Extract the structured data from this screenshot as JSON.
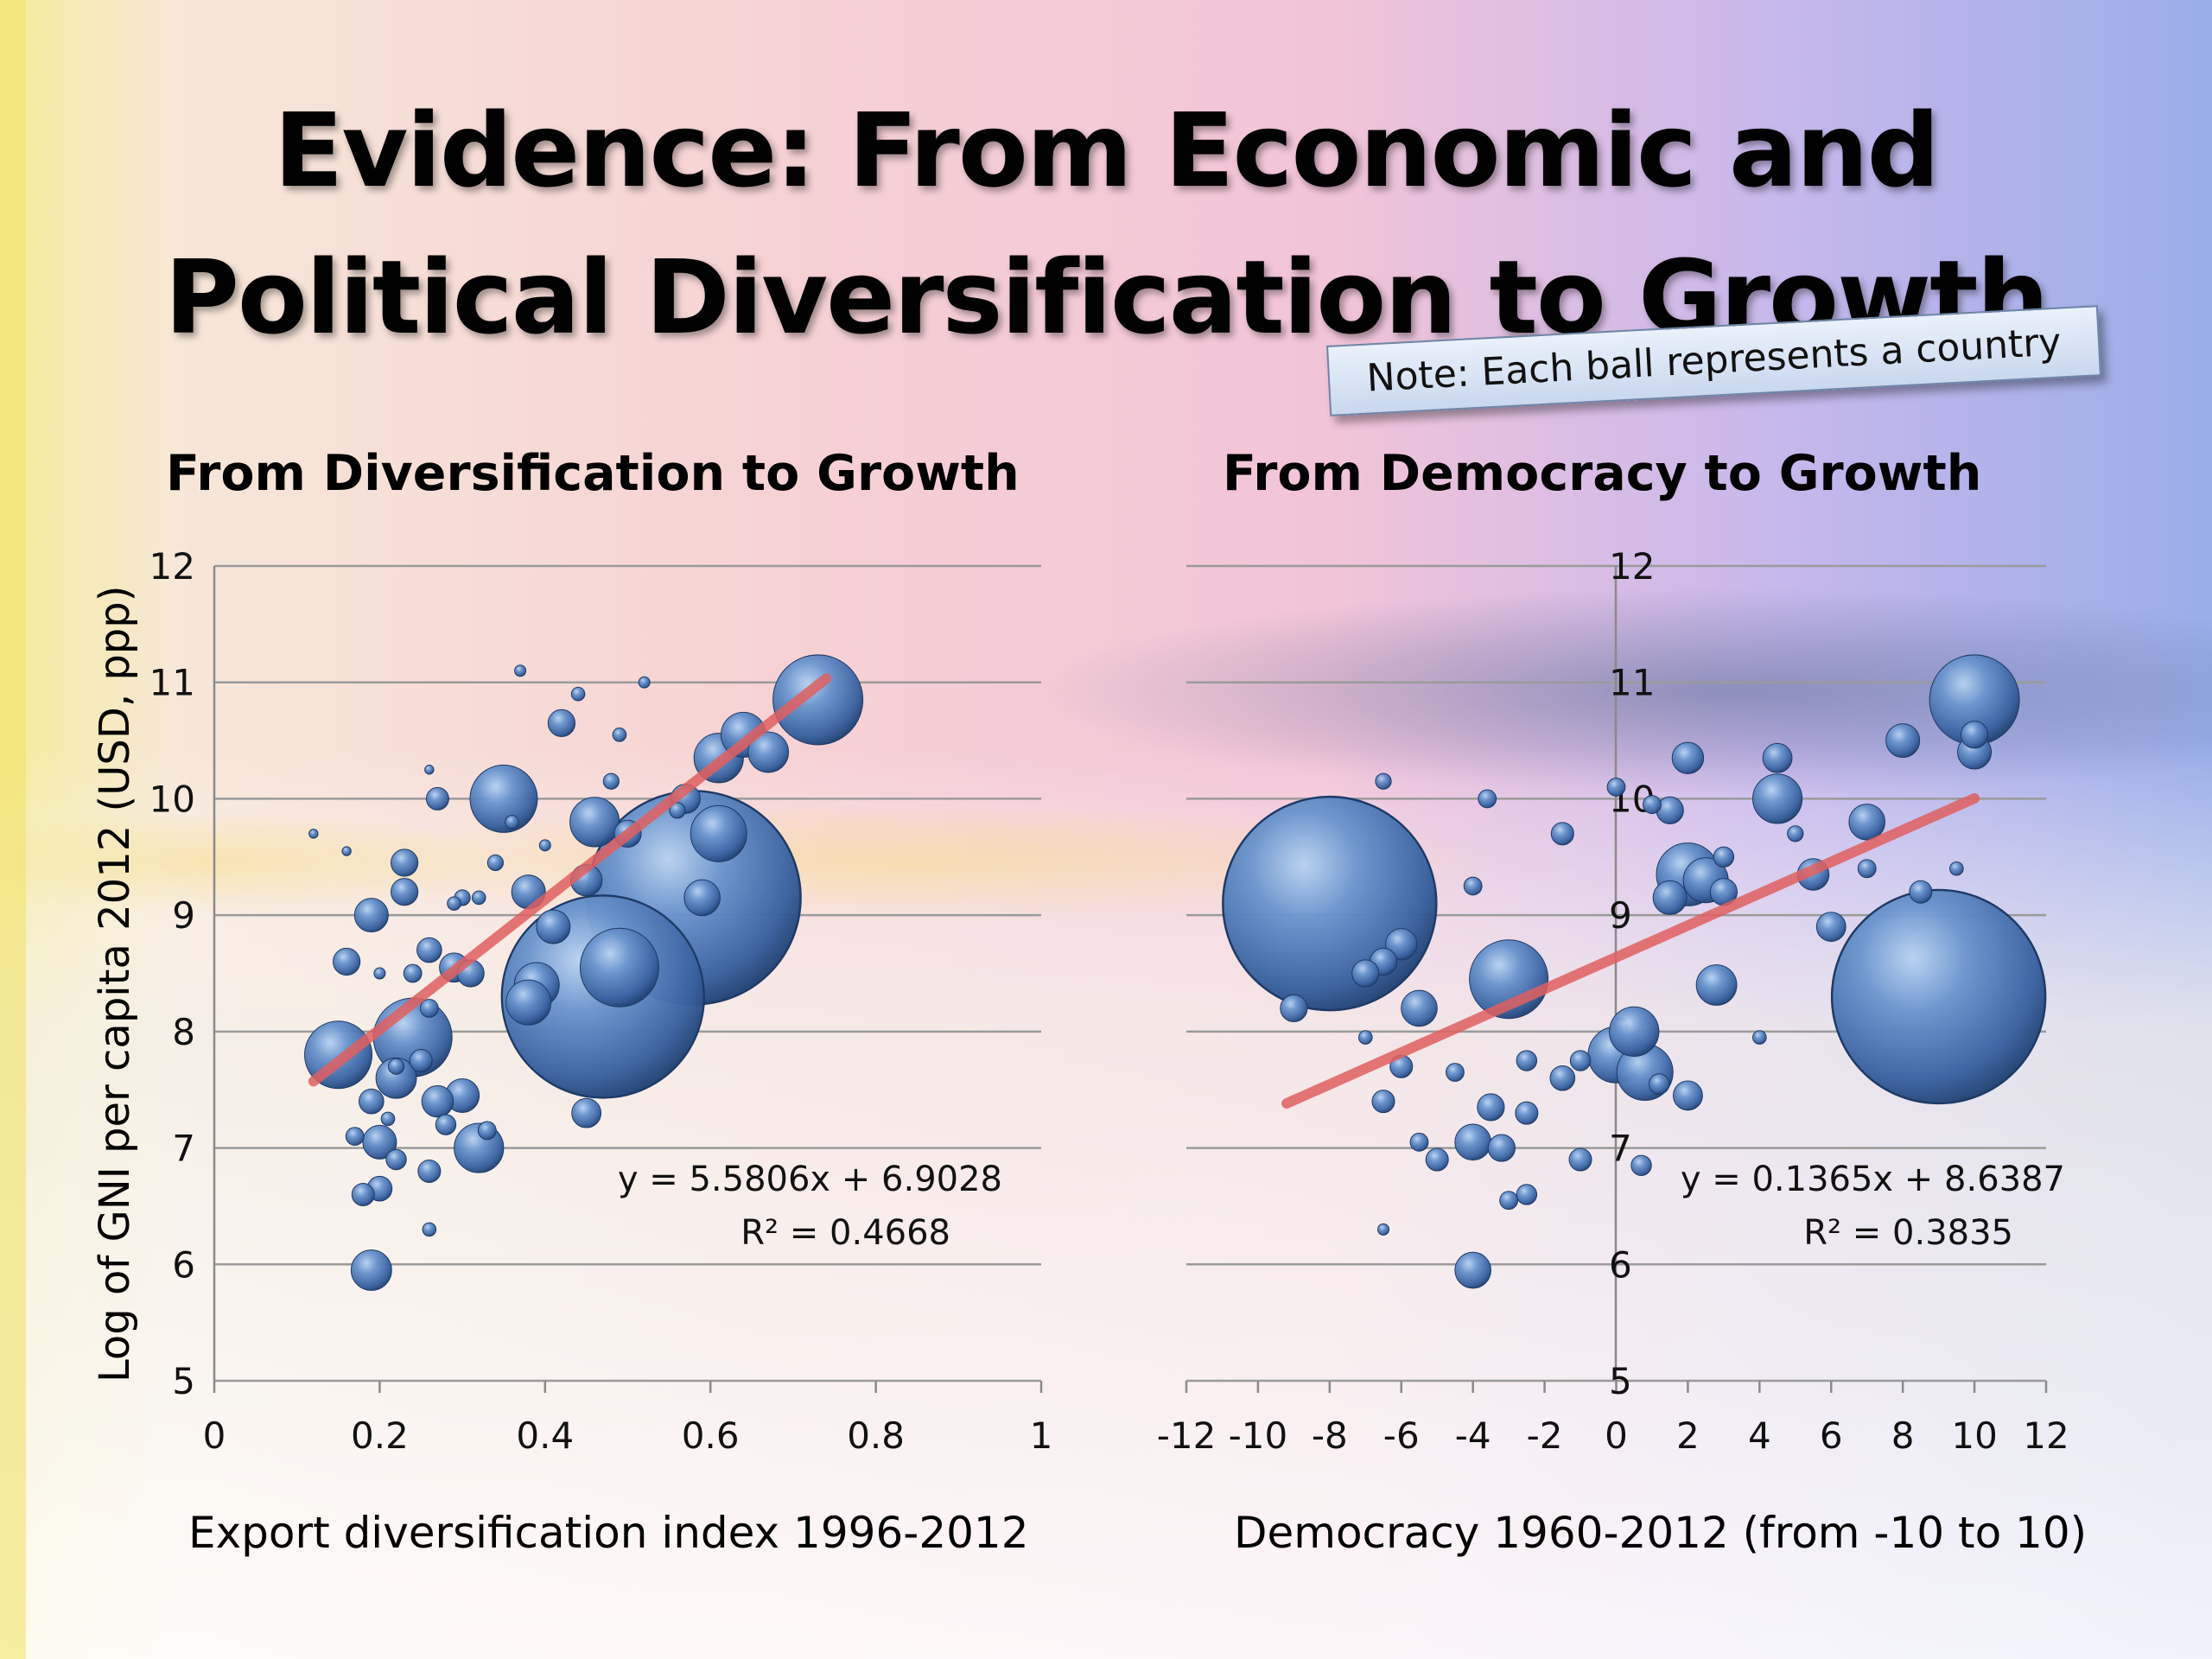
{
  "slide": {
    "title_line1": "Evidence: From Economic and",
    "title_line2": "Political Diversification to Growth",
    "note": "Note: Each ball represents a country",
    "ylabel": "Log of GNI per capita 2012 (USD, ppp)",
    "colors": {
      "bubble": "#4f7cb8",
      "bubble_dark": "#1f3f6e",
      "trend": "#e06060"
    }
  },
  "chart_data": [
    {
      "type": "scatter",
      "title": "From Diversification to Growth",
      "xlabel": "Export diversification index 1996-2012",
      "ylabel": "Log of GNI per capita 2012 (USD, ppp)",
      "xlim": [
        0,
        1
      ],
      "ylim": [
        5,
        12
      ],
      "xticks": [
        "0",
        "0.2",
        "0.4",
        "0.6",
        "0.8",
        "1"
      ],
      "xtick_values": [
        0,
        0.2,
        0.4,
        0.6,
        0.8,
        1
      ],
      "yticks": [
        "5",
        "6",
        "7",
        "8",
        "9",
        "10",
        "11",
        "12"
      ],
      "ytick_values": [
        5,
        6,
        7,
        8,
        9,
        10,
        11,
        12
      ],
      "grid": "horizontal",
      "equation": "y = 5.5806x + 6.9028",
      "r2": "R² = 0.4668",
      "trendline": {
        "slope": 5.5806,
        "intercept": 6.9028,
        "x_range": [
          0.12,
          0.74
        ]
      },
      "points": [
        {
          "x": 0.47,
          "y": 8.3,
          "size": 9
        },
        {
          "x": 0.58,
          "y": 9.15,
          "size": 9.5
        },
        {
          "x": 0.49,
          "y": 8.55,
          "size": 3.5
        },
        {
          "x": 0.73,
          "y": 10.85,
          "size": 4
        },
        {
          "x": 0.35,
          "y": 10.0,
          "size": 3
        },
        {
          "x": 0.24,
          "y": 7.95,
          "size": 3.5
        },
        {
          "x": 0.15,
          "y": 7.8,
          "size": 3
        },
        {
          "x": 0.32,
          "y": 7.0,
          "size": 2.2
        },
        {
          "x": 0.19,
          "y": 5.95,
          "size": 1.8
        },
        {
          "x": 0.61,
          "y": 9.7,
          "size": 2.5
        },
        {
          "x": 0.46,
          "y": 9.8,
          "size": 2.2
        },
        {
          "x": 0.61,
          "y": 10.35,
          "size": 2.2
        },
        {
          "x": 0.64,
          "y": 10.55,
          "size": 2
        },
        {
          "x": 0.67,
          "y": 10.4,
          "size": 1.8
        },
        {
          "x": 0.39,
          "y": 8.4,
          "size": 2
        },
        {
          "x": 0.38,
          "y": 8.25,
          "size": 2
        },
        {
          "x": 0.41,
          "y": 8.9,
          "size": 1.5
        },
        {
          "x": 0.38,
          "y": 9.2,
          "size": 1.5
        },
        {
          "x": 0.59,
          "y": 9.15,
          "size": 1.6
        },
        {
          "x": 0.45,
          "y": 9.3,
          "size": 1.4
        },
        {
          "x": 0.22,
          "y": 7.6,
          "size": 1.8
        },
        {
          "x": 0.27,
          "y": 7.4,
          "size": 1.4
        },
        {
          "x": 0.3,
          "y": 7.45,
          "size": 1.5
        },
        {
          "x": 0.2,
          "y": 7.05,
          "size": 1.5
        },
        {
          "x": 0.19,
          "y": 9.0,
          "size": 1.5
        },
        {
          "x": 0.23,
          "y": 9.2,
          "size": 1.2
        },
        {
          "x": 0.23,
          "y": 9.45,
          "size": 1.2
        },
        {
          "x": 0.16,
          "y": 8.6,
          "size": 1.2
        },
        {
          "x": 0.29,
          "y": 8.55,
          "size": 1.3
        },
        {
          "x": 0.31,
          "y": 8.5,
          "size": 1.2
        },
        {
          "x": 0.26,
          "y": 8.7,
          "size": 1.1
        },
        {
          "x": 0.26,
          "y": 6.8,
          "size": 1
        },
        {
          "x": 0.2,
          "y": 6.65,
          "size": 1.1
        },
        {
          "x": 0.18,
          "y": 6.6,
          "size": 1
        },
        {
          "x": 0.45,
          "y": 7.3,
          "size": 1.3
        },
        {
          "x": 0.42,
          "y": 10.65,
          "size": 1.2
        },
        {
          "x": 0.5,
          "y": 9.7,
          "size": 1.2
        },
        {
          "x": 0.57,
          "y": 10.0,
          "size": 1.3
        },
        {
          "x": 0.27,
          "y": 10.0,
          "size": 1
        },
        {
          "x": 0.19,
          "y": 7.4,
          "size": 1.1
        },
        {
          "x": 0.25,
          "y": 7.75,
          "size": 1
        },
        {
          "x": 0.28,
          "y": 7.2,
          "size": 0.9
        },
        {
          "x": 0.22,
          "y": 6.9,
          "size": 0.9
        },
        {
          "x": 0.17,
          "y": 7.1,
          "size": 0.8
        },
        {
          "x": 0.24,
          "y": 8.5,
          "size": 0.8
        },
        {
          "x": 0.26,
          "y": 8.2,
          "size": 0.8
        },
        {
          "x": 0.33,
          "y": 7.15,
          "size": 0.8
        },
        {
          "x": 0.34,
          "y": 9.45,
          "size": 0.7
        },
        {
          "x": 0.36,
          "y": 9.8,
          "size": 0.6
        },
        {
          "x": 0.44,
          "y": 10.9,
          "size": 0.6
        },
        {
          "x": 0.49,
          "y": 10.55,
          "size": 0.6
        },
        {
          "x": 0.48,
          "y": 10.15,
          "size": 0.7
        },
        {
          "x": 0.37,
          "y": 11.1,
          "size": 0.5
        },
        {
          "x": 0.52,
          "y": 11.0,
          "size": 0.5
        },
        {
          "x": 0.26,
          "y": 6.3,
          "size": 0.6
        },
        {
          "x": 0.3,
          "y": 9.15,
          "size": 0.7
        },
        {
          "x": 0.32,
          "y": 9.15,
          "size": 0.6
        },
        {
          "x": 0.12,
          "y": 9.7,
          "size": 0.4
        },
        {
          "x": 0.16,
          "y": 9.55,
          "size": 0.4
        },
        {
          "x": 0.26,
          "y": 10.25,
          "size": 0.4
        },
        {
          "x": 0.2,
          "y": 8.5,
          "size": 0.5
        },
        {
          "x": 0.4,
          "y": 9.6,
          "size": 0.5
        },
        {
          "x": 0.21,
          "y": 7.25,
          "size": 0.6
        },
        {
          "x": 0.22,
          "y": 7.7,
          "size": 0.7
        },
        {
          "x": 0.56,
          "y": 9.9,
          "size": 0.7
        },
        {
          "x": 0.29,
          "y": 9.1,
          "size": 0.6
        }
      ]
    },
    {
      "type": "scatter",
      "title": "From Democracy to Growth",
      "xlabel": "Democracy 1960-2012 (from -10 to 10)",
      "ylabel": "Log of GNI per capita 2012 (USD, ppp)",
      "xlim": [
        -12,
        12
      ],
      "ylim": [
        5,
        12
      ],
      "xticks": [
        "-12",
        "-10",
        "-8",
        "-6",
        "-4",
        "-2",
        "0",
        "2",
        "4",
        "6",
        "8",
        "10",
        "12"
      ],
      "xtick_values": [
        -12,
        -10,
        -8,
        -6,
        -4,
        -2,
        0,
        2,
        4,
        6,
        8,
        10,
        12
      ],
      "yticks": [
        "5",
        "6",
        "7",
        "8",
        "9",
        "10",
        "11",
        "12"
      ],
      "ytick_values": [
        5,
        6,
        7,
        8,
        9,
        10,
        11,
        12
      ],
      "grid": "horizontal",
      "equation": "y = 0.1365x + 8.6387",
      "r2": "R² = 0.3835",
      "trendline": {
        "slope": 0.1365,
        "intercept": 8.6387,
        "x_range": [
          -9.2,
          10
        ]
      },
      "points": [
        {
          "x": -8,
          "y": 9.1,
          "size": 9.5
        },
        {
          "x": 9,
          "y": 8.3,
          "size": 9.5
        },
        {
          "x": 10,
          "y": 10.85,
          "size": 4
        },
        {
          "x": -3,
          "y": 8.45,
          "size": 3.5
        },
        {
          "x": 0.5,
          "y": 8.0,
          "size": 2.2
        },
        {
          "x": 0,
          "y": 7.8,
          "size": 2.5
        },
        {
          "x": 0.8,
          "y": 7.65,
          "size": 2.5
        },
        {
          "x": 2,
          "y": 9.35,
          "size": 2.8
        },
        {
          "x": 2.5,
          "y": 9.3,
          "size": 2
        },
        {
          "x": 4.5,
          "y": 10.0,
          "size": 2.2
        },
        {
          "x": 2.8,
          "y": 8.4,
          "size": 1.8
        },
        {
          "x": 7,
          "y": 9.8,
          "size": 1.6
        },
        {
          "x": 8,
          "y": 10.5,
          "size": 1.5
        },
        {
          "x": -5.5,
          "y": 8.2,
          "size": 1.6
        },
        {
          "x": -4,
          "y": 7.05,
          "size": 1.6
        },
        {
          "x": -4,
          "y": 5.95,
          "size": 1.6
        },
        {
          "x": -6,
          "y": 8.75,
          "size": 1.4
        },
        {
          "x": -6.5,
          "y": 8.6,
          "size": 1.2
        },
        {
          "x": -7,
          "y": 8.5,
          "size": 1.2
        },
        {
          "x": 5.5,
          "y": 9.35,
          "size": 1.4
        },
        {
          "x": 6,
          "y": 8.9,
          "size": 1.3
        },
        {
          "x": 1.5,
          "y": 9.15,
          "size": 1.5
        },
        {
          "x": 1.5,
          "y": 9.9,
          "size": 1.2
        },
        {
          "x": 2,
          "y": 10.35,
          "size": 1.4
        },
        {
          "x": 4.5,
          "y": 10.35,
          "size": 1.3
        },
        {
          "x": 3,
          "y": 9.2,
          "size": 1.2
        },
        {
          "x": 2,
          "y": 7.45,
          "size": 1.3
        },
        {
          "x": -3.5,
          "y": 7.35,
          "size": 1.2
        },
        {
          "x": -3.2,
          "y": 7.0,
          "size": 1.2
        },
        {
          "x": -5,
          "y": 6.9,
          "size": 1
        },
        {
          "x": -2.5,
          "y": 7.3,
          "size": 1
        },
        {
          "x": -1.5,
          "y": 7.6,
          "size": 1.1
        },
        {
          "x": -6.5,
          "y": 7.4,
          "size": 1
        },
        {
          "x": -6,
          "y": 7.7,
          "size": 1
        },
        {
          "x": -9,
          "y": 8.2,
          "size": 1.2
        },
        {
          "x": -2.5,
          "y": 6.6,
          "size": 0.9
        },
        {
          "x": -3,
          "y": 6.55,
          "size": 0.8
        },
        {
          "x": -1,
          "y": 7.75,
          "size": 0.9
        },
        {
          "x": 0.7,
          "y": 6.85,
          "size": 0.9
        },
        {
          "x": -1,
          "y": 6.9,
          "size": 1
        },
        {
          "x": -4,
          "y": 9.25,
          "size": 0.8
        },
        {
          "x": -3.6,
          "y": 10.0,
          "size": 0.8
        },
        {
          "x": -6.5,
          "y": 10.15,
          "size": 0.7
        },
        {
          "x": -1.5,
          "y": 9.7,
          "size": 1
        },
        {
          "x": 0,
          "y": 10.1,
          "size": 0.8
        },
        {
          "x": 1,
          "y": 9.95,
          "size": 0.8
        },
        {
          "x": 4,
          "y": 7.95,
          "size": 0.6
        },
        {
          "x": -7,
          "y": 7.95,
          "size": 0.6
        },
        {
          "x": 10,
          "y": 10.4,
          "size": 1.5
        },
        {
          "x": 10,
          "y": 10.55,
          "size": 1.2
        },
        {
          "x": 8.5,
          "y": 9.2,
          "size": 1
        },
        {
          "x": 7,
          "y": 9.4,
          "size": 0.8
        },
        {
          "x": 5,
          "y": 9.7,
          "size": 0.7
        },
        {
          "x": -6.5,
          "y": 6.3,
          "size": 0.5
        },
        {
          "x": -2.5,
          "y": 7.75,
          "size": 0.9
        },
        {
          "x": -5.5,
          "y": 7.05,
          "size": 0.8
        },
        {
          "x": 1.2,
          "y": 7.55,
          "size": 0.9
        },
        {
          "x": -4.5,
          "y": 7.65,
          "size": 0.8
        },
        {
          "x": 9.5,
          "y": 9.4,
          "size": 0.6
        },
        {
          "x": 3,
          "y": 9.5,
          "size": 0.9
        }
      ]
    }
  ]
}
